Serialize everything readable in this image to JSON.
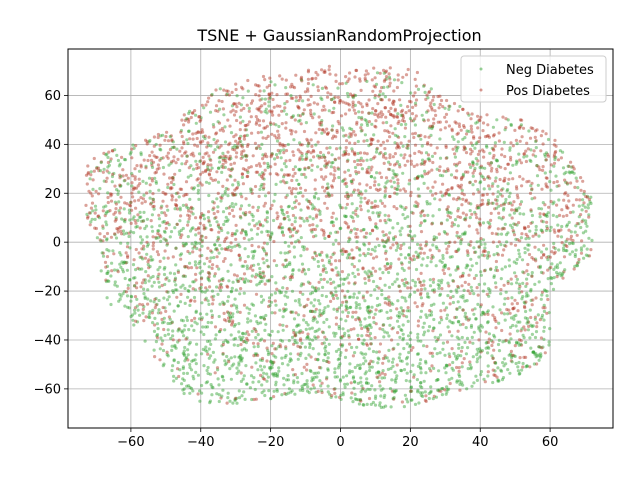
{
  "chart_data": {
    "type": "scatter",
    "title": "TSNE + GaussianRandomProjection",
    "xlabel": "",
    "ylabel": "",
    "xlim": [
      -78,
      78
    ],
    "ylim": [
      -76,
      79
    ],
    "xticks": [
      -60,
      -40,
      -20,
      0,
      20,
      40,
      60
    ],
    "yticks": [
      -60,
      -40,
      -20,
      0,
      20,
      40,
      60
    ],
    "xtick_labels": [
      "−60",
      "−40",
      "−20",
      "0",
      "20",
      "40",
      "60"
    ],
    "ytick_labels": [
      "−60",
      "−40",
      "−20",
      "0",
      "20",
      "40",
      "60"
    ],
    "grid": true,
    "legend_position": "top-right",
    "series": [
      {
        "name": "Neg Diabetes",
        "color": "#2ca02c"
      },
      {
        "name": "Pos Diabetes",
        "color": "#b03020"
      }
    ],
    "point_cloud": {
      "shape": "ellipse",
      "x_extent": [
        -73,
        72
      ],
      "y_extent": [
        -69,
        72
      ],
      "upper_region_dominant": "Pos Diabetes",
      "lower_region_dominant": "Neg Diabetes"
    }
  }
}
